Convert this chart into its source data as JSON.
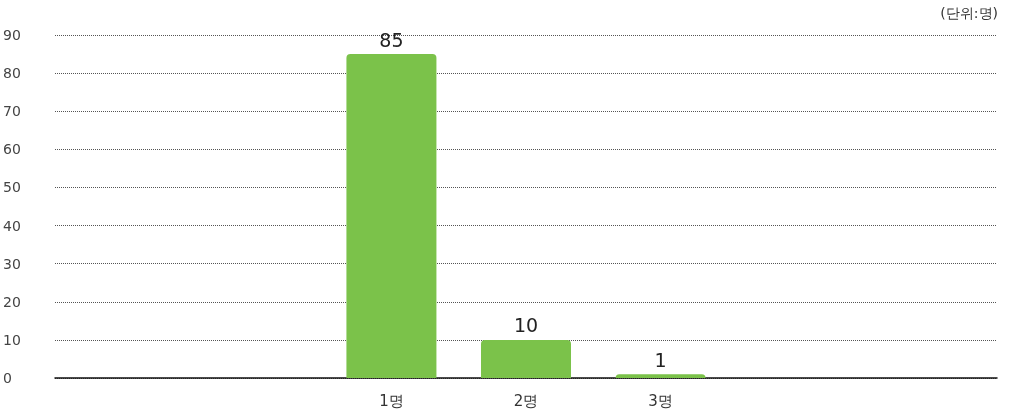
{
  "chart_data": {
    "type": "bar",
    "categories": [
      null,
      null,
      "1명",
      "2명",
      "3명",
      null,
      null
    ],
    "values": [
      null,
      null,
      85,
      10,
      1,
      null,
      null
    ],
    "color": "#7bc24a",
    "ylim": [
      0,
      90
    ],
    "yticks": [
      0,
      10,
      20,
      30,
      40,
      50,
      60,
      70,
      80,
      90
    ],
    "grid": "y",
    "data_labels": true,
    "annotations": [
      "(단위:명)"
    ]
  }
}
